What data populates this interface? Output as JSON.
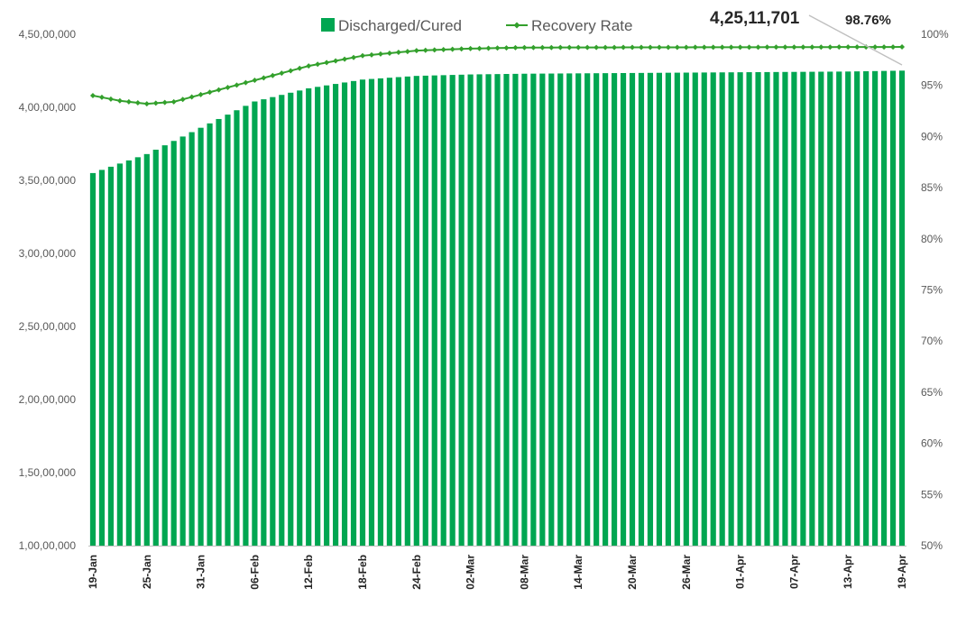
{
  "chart_data": {
    "type": "bar",
    "title": "",
    "xlabel": "",
    "ylabel": "",
    "y2label": "",
    "grid": false,
    "legend_position": "top",
    "ylim": [
      10000000,
      45000000
    ],
    "y2lim": [
      50,
      100
    ],
    "y_ticks": [
      "1,00,00,000",
      "1,50,00,000",
      "2,00,00,000",
      "2,50,00,000",
      "3,00,00,000",
      "3,50,00,000",
      "4,00,00,000",
      "4,50,00,000"
    ],
    "y2_ticks": [
      "50%",
      "55%",
      "60%",
      "65%",
      "70%",
      "75%",
      "80%",
      "85%",
      "90%",
      "95%",
      "100%"
    ],
    "x_tick_labels": [
      "19-Jan",
      "25-Jan",
      "31-Jan",
      "06-Feb",
      "12-Feb",
      "18-Feb",
      "24-Feb",
      "02-Mar",
      "08-Mar",
      "14-Mar",
      "20-Mar",
      "26-Mar",
      "01-Apr",
      "07-Apr",
      "13-Apr",
      "19-Apr"
    ],
    "x_tick_every": 6,
    "bar_count": 91,
    "series": [
      {
        "name": "Discharged/Cured",
        "kind": "bar",
        "axis": "left",
        "color": "#00a651",
        "key_points": [
          {
            "index": 0,
            "value": 35500000
          },
          {
            "index": 6,
            "value": 36800000
          },
          {
            "index": 12,
            "value": 38600000
          },
          {
            "index": 18,
            "value": 40400000
          },
          {
            "index": 24,
            "value": 41300000
          },
          {
            "index": 30,
            "value": 41900000
          },
          {
            "index": 36,
            "value": 42150000
          },
          {
            "index": 42,
            "value": 42250000
          },
          {
            "index": 48,
            "value": 42300000
          },
          {
            "index": 60,
            "value": 42350000
          },
          {
            "index": 72,
            "value": 42400000
          },
          {
            "index": 84,
            "value": 42450000
          },
          {
            "index": 90,
            "value": 42511701
          }
        ]
      },
      {
        "name": "Recovery Rate",
        "kind": "line",
        "axis": "right",
        "color": "#33a02c",
        "marker": "diamond",
        "key_points": [
          {
            "index": 0,
            "value": 94.0
          },
          {
            "index": 3,
            "value": 93.5
          },
          {
            "index": 6,
            "value": 93.2
          },
          {
            "index": 9,
            "value": 93.4
          },
          {
            "index": 12,
            "value": 94.1
          },
          {
            "index": 18,
            "value": 95.5
          },
          {
            "index": 24,
            "value": 96.9
          },
          {
            "index": 30,
            "value": 97.9
          },
          {
            "index": 36,
            "value": 98.4
          },
          {
            "index": 42,
            "value": 98.6
          },
          {
            "index": 48,
            "value": 98.7
          },
          {
            "index": 90,
            "value": 98.76
          }
        ]
      }
    ],
    "annotations": {
      "last_value": "4,25,11,701",
      "last_rate": "98.76%"
    }
  }
}
